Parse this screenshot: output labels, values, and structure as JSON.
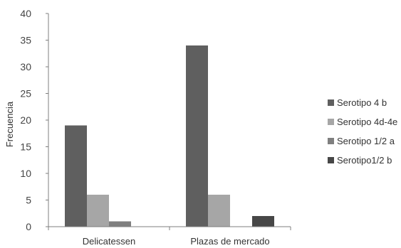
{
  "chart_data": {
    "type": "bar",
    "title": "",
    "xlabel": "",
    "ylabel": "Frecuencia",
    "ylim": [
      0,
      40
    ],
    "yticks": [
      0,
      5,
      10,
      15,
      20,
      25,
      30,
      35,
      40
    ],
    "categories": [
      "Delicatessen",
      "Plazas de mercado"
    ],
    "series": [
      {
        "name": "Serotipo 4 b",
        "values": [
          19,
          34
        ],
        "color": "#5f5f5f"
      },
      {
        "name": "Serotipo 4d-4e",
        "values": [
          6,
          6
        ],
        "color": "#a6a6a6"
      },
      {
        "name": "Serotipo 1/2 a",
        "values": [
          1,
          0
        ],
        "color": "#7f7f7f"
      },
      {
        "name": "Serotipo1/2 b",
        "values": [
          0,
          2
        ],
        "color": "#474747"
      }
    ],
    "grid": false,
    "legend_position": "right"
  }
}
